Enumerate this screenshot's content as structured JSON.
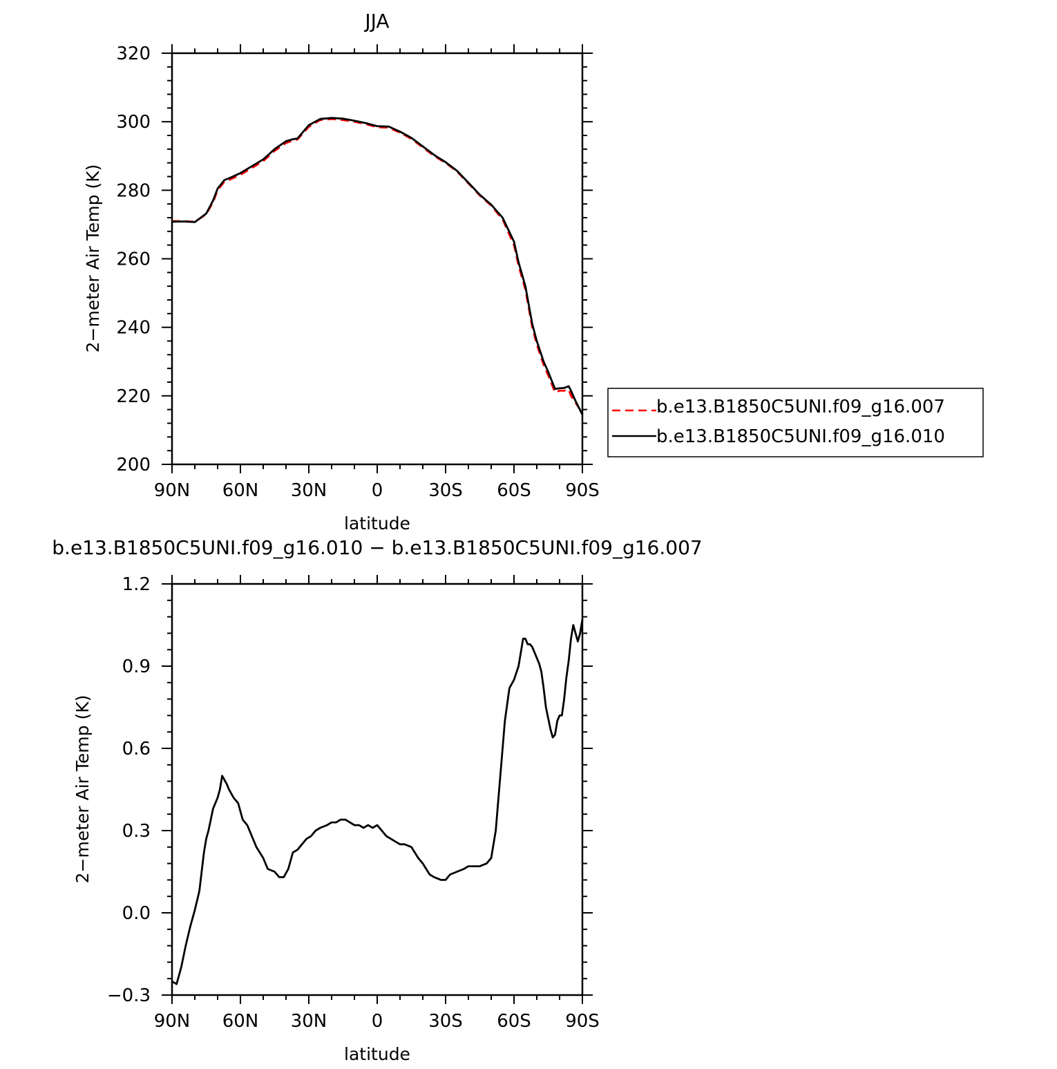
{
  "chart_data": [
    {
      "type": "line",
      "title": "JJA",
      "xlabel": "latitude",
      "ylabel": "2−meter Air Temp (K)",
      "x_tick_labels": [
        "90N",
        "60N",
        "30N",
        "0",
        "30S",
        "60S",
        "90S"
      ],
      "x_tick_values": [
        90,
        60,
        30,
        0,
        -30,
        -60,
        -90
      ],
      "xlim": [
        90,
        -90
      ],
      "ylim": [
        200,
        320
      ],
      "y_tick_labels": [
        "200",
        "220",
        "240",
        "260",
        "280",
        "300",
        "320"
      ],
      "y_tick_values": [
        200,
        220,
        240,
        260,
        280,
        300,
        320
      ],
      "legend": {
        "position": "right",
        "entries": [
          "b.e13.B1850C5UNI.f09_g16.007",
          "b.e13.B1850C5UNI.f09_g16.010"
        ]
      },
      "series": [
        {
          "name": "b.e13.B1850C5UNI.f09_g16.007",
          "color": "#ff0000",
          "style": "dashed",
          "x": [
            90,
            85,
            80,
            75,
            72,
            70,
            67,
            65,
            60,
            55,
            50,
            45,
            40,
            37,
            35,
            30,
            25,
            20,
            15,
            10,
            5,
            0,
            -5,
            -10,
            -15,
            -20,
            -25,
            -30,
            -35,
            -40,
            -45,
            -50,
            -55,
            -60,
            -62,
            -65,
            -68,
            -70,
            -73,
            -75,
            -78,
            -80,
            -82,
            -84,
            -85,
            -87,
            -90
          ],
          "y": [
            271,
            271,
            270.8,
            273,
            276.5,
            280,
            282.5,
            283,
            284.5,
            286.5,
            288.5,
            291.5,
            293.8,
            294.5,
            294.8,
            298.5,
            300.5,
            300.8,
            300.5,
            300,
            299.3,
            298.4,
            298.3,
            296.8,
            295,
            292.5,
            290,
            288,
            285.5,
            282,
            278.5,
            275.5,
            271.5,
            264,
            258,
            251,
            240,
            235,
            229,
            226,
            221,
            221.5,
            221.5,
            221.8,
            220,
            218,
            215
          ]
        },
        {
          "name": "b.e13.B1850C5UNI.f09_g16.010",
          "color": "#000000",
          "style": "solid",
          "x": [
            90,
            85,
            80,
            75,
            72,
            70,
            67,
            65,
            60,
            55,
            50,
            45,
            40,
            37,
            35,
            30,
            25,
            20,
            15,
            10,
            5,
            0,
            -5,
            -10,
            -15,
            -20,
            -25,
            -30,
            -35,
            -40,
            -45,
            -50,
            -55,
            -60,
            -62,
            -65,
            -68,
            -70,
            -73,
            -75,
            -78,
            -80,
            -82,
            -84,
            -85,
            -87,
            -90
          ],
          "y": [
            270.8,
            270.9,
            270.7,
            273.2,
            277,
            280.5,
            283,
            283.5,
            285,
            287,
            289,
            292,
            294.3,
            294.9,
            295.1,
            299,
            300.8,
            301.1,
            300.9,
            300.3,
            299.6,
            298.7,
            298.6,
            297.1,
            295.3,
            292.8,
            290.3,
            288.2,
            285.7,
            282.2,
            278.7,
            275.8,
            272,
            265,
            259,
            252,
            241,
            236,
            230,
            227,
            222,
            222.2,
            222.3,
            222.8,
            221.5,
            218.5,
            214.5
          ]
        }
      ]
    },
    {
      "type": "line",
      "title": "b.e13.B1850C5UNI.f09_g16.010 − b.e13.B1850C5UNI.f09_g16.007",
      "xlabel": "latitude",
      "ylabel": "2−meter Air Temp (K)",
      "x_tick_labels": [
        "90N",
        "60N",
        "30N",
        "0",
        "30S",
        "60S",
        "90S"
      ],
      "x_tick_values": [
        90,
        60,
        30,
        0,
        -30,
        -60,
        -90
      ],
      "xlim": [
        90,
        -90
      ],
      "ylim": [
        -0.3,
        1.2
      ],
      "y_tick_labels": [
        "−0.3",
        "0.0",
        "0.3",
        "0.6",
        "0.9",
        "1.2"
      ],
      "y_tick_values": [
        -0.3,
        0.0,
        0.3,
        0.6,
        0.9,
        1.2
      ],
      "series": [
        {
          "color": "#000000",
          "style": "solid",
          "x": [
            90,
            88,
            86,
            84,
            82,
            80,
            78,
            76,
            75,
            74,
            72,
            70,
            69,
            68,
            66,
            65,
            63,
            61,
            59,
            57,
            55,
            53,
            50,
            48,
            45,
            43,
            41,
            39,
            37,
            35,
            33,
            31,
            29,
            27,
            25,
            22,
            20,
            18,
            16,
            14,
            12,
            10,
            8,
            6,
            4,
            2,
            0,
            -2,
            -4,
            -6,
            -8,
            -10,
            -12,
            -15,
            -18,
            -20,
            -23,
            -25,
            -28,
            -30,
            -32,
            -35,
            -38,
            -40,
            -42,
            -45,
            -48,
            -50,
            -52,
            -54,
            -56,
            -58,
            -60,
            -62,
            -64,
            -65,
            -66,
            -67,
            -68,
            -69,
            -70,
            -71,
            -72,
            -73,
            -74,
            -76,
            -77,
            -78,
            -79,
            -80,
            -81,
            -82,
            -83,
            -84,
            -85,
            -86,
            -87,
            -88,
            -89,
            -90
          ],
          "y": [
            -0.25,
            -0.26,
            -0.2,
            -0.12,
            -0.05,
            0.01,
            0.08,
            0.22,
            0.27,
            0.3,
            0.38,
            0.42,
            0.45,
            0.5,
            0.47,
            0.45,
            0.42,
            0.4,
            0.34,
            0.32,
            0.28,
            0.24,
            0.2,
            0.16,
            0.15,
            0.13,
            0.13,
            0.16,
            0.22,
            0.23,
            0.25,
            0.27,
            0.28,
            0.3,
            0.31,
            0.32,
            0.33,
            0.33,
            0.34,
            0.34,
            0.33,
            0.32,
            0.32,
            0.31,
            0.32,
            0.31,
            0.32,
            0.3,
            0.28,
            0.27,
            0.26,
            0.25,
            0.25,
            0.24,
            0.2,
            0.18,
            0.14,
            0.13,
            0.12,
            0.12,
            0.14,
            0.15,
            0.16,
            0.17,
            0.17,
            0.17,
            0.18,
            0.2,
            0.3,
            0.5,
            0.7,
            0.82,
            0.85,
            0.9,
            1.0,
            1.0,
            0.98,
            0.98,
            0.97,
            0.95,
            0.93,
            0.91,
            0.88,
            0.82,
            0.75,
            0.67,
            0.64,
            0.65,
            0.7,
            0.72,
            0.72,
            0.78,
            0.86,
            0.92,
            1.0,
            1.05,
            1.02,
            0.99,
            1.02,
            1.07
          ]
        }
      ]
    }
  ]
}
